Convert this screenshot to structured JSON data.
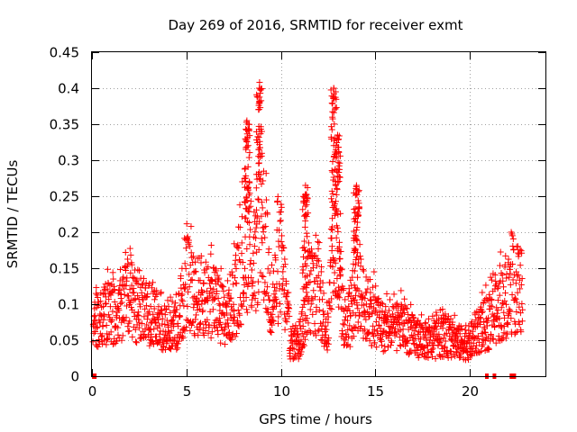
{
  "chart_data": {
    "type": "scatter",
    "title": "Day 269 of 2016, SRMTID for receiver exmt",
    "xlabel": "GPS time / hours",
    "ylabel": "SRMTID / TECUs",
    "xlim": [
      0,
      24
    ],
    "ylim": [
      0,
      0.45
    ],
    "xticks": [
      0,
      5,
      10,
      15,
      20
    ],
    "yticks": [
      0,
      0.05,
      0.1,
      0.15,
      0.2,
      0.25,
      0.3,
      0.35,
      0.4,
      0.45
    ],
    "grid": true,
    "marker": "plus",
    "series": [
      {
        "name": "SRMTID",
        "color": "#ff0000",
        "envelope_x": [
          0,
          0.5,
          1.0,
          1.5,
          2.0,
          2.5,
          3.0,
          3.5,
          4.0,
          4.5,
          5.0,
          5.5,
          6.0,
          6.5,
          7.0,
          7.5,
          8.0,
          8.3,
          8.6,
          8.9,
          9.2,
          9.5,
          10.0,
          10.5,
          11.0,
          11.5,
          12.0,
          12.5,
          12.8,
          13.1,
          13.5,
          14.0,
          14.5,
          15.0,
          15.5,
          16.0,
          16.5,
          17.0,
          17.5,
          18.0,
          18.5,
          19.0,
          19.5,
          20.0,
          20.5,
          21.0,
          21.5,
          22.0,
          22.5
        ],
        "envelope_y": [
          0.07,
          0.085,
          0.1,
          0.09,
          0.13,
          0.09,
          0.095,
          0.08,
          0.07,
          0.075,
          0.14,
          0.12,
          0.12,
          0.11,
          0.09,
          0.11,
          0.17,
          0.2,
          0.15,
          0.26,
          0.19,
          0.1,
          0.18,
          0.05,
          0.05,
          0.13,
          0.12,
          0.06,
          0.22,
          0.13,
          0.06,
          0.14,
          0.1,
          0.09,
          0.07,
          0.07,
          0.075,
          0.06,
          0.055,
          0.05,
          0.06,
          0.055,
          0.05,
          0.05,
          0.07,
          0.08,
          0.1,
          0.12,
          0.13
        ],
        "peaks": [
          {
            "x": 8.2,
            "y": 0.355
          },
          {
            "x": 8.85,
            "y": 0.4
          },
          {
            "x": 12.8,
            "y": 0.4
          },
          {
            "x": 13.0,
            "y": 0.335
          },
          {
            "x": 14.0,
            "y": 0.265
          },
          {
            "x": 11.3,
            "y": 0.265
          }
        ],
        "zero_points_x": [
          0.1,
          0.15,
          20.9,
          21.3,
          22.2,
          22.35
        ]
      }
    ]
  }
}
